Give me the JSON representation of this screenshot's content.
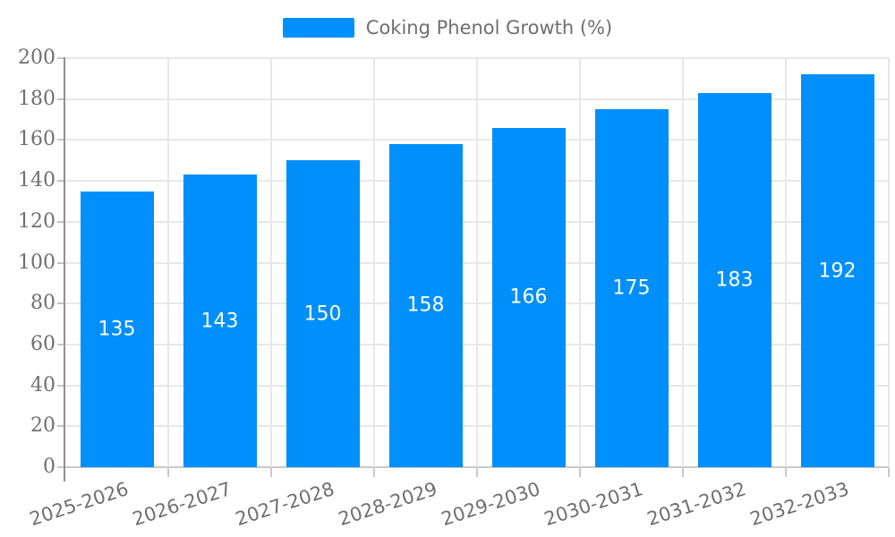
{
  "legend": {
    "label": "Coking Phenol Growth (%)"
  },
  "chart_data": {
    "type": "bar",
    "title": "",
    "xlabel": "",
    "ylabel": "",
    "categories": [
      "2025-2026",
      "2026-2027",
      "2027-2028",
      "2028-2029",
      "2029-2030",
      "2030-2031",
      "2031-2032",
      "2032-2033"
    ],
    "series": [
      {
        "name": "Coking Phenol Growth (%)",
        "values": [
          135,
          143,
          150,
          158,
          166,
          175,
          183,
          192
        ]
      }
    ],
    "value_labels": [
      "135",
      "143",
      "150",
      "158",
      "166",
      "175",
      "183",
      "192"
    ],
    "ylim": [
      0,
      200
    ],
    "yticks": [
      0,
      20,
      40,
      60,
      80,
      100,
      120,
      140,
      160,
      180,
      200
    ],
    "grid": true,
    "legend_position": "top",
    "colors": {
      "bar": "#008ffb",
      "value_label": "#ffffff",
      "axis_text": "#6f6f6f",
      "grid_line": "#e7e7e7",
      "y_axis_line": "#8f8f8f",
      "x_axis_line": "#c8c8c8",
      "background": "#ffffff"
    }
  }
}
